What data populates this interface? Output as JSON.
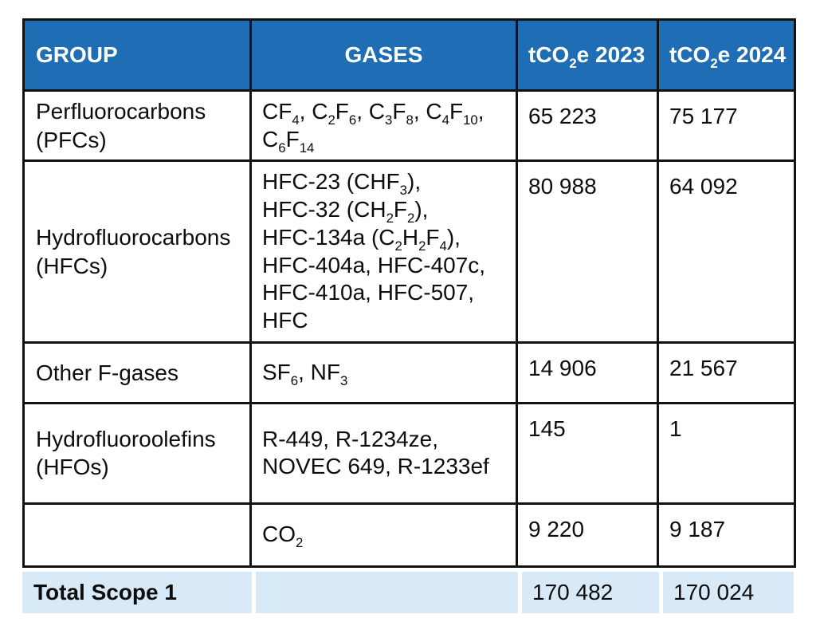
{
  "colors": {
    "header_bg": "#1f6db4",
    "header_text": "#ffffff",
    "total_bg": "#d8eaf8",
    "border": "#121212",
    "body_text": "#0d0d0d"
  },
  "header": {
    "group": "GROUP",
    "gases": "GASES",
    "y2023": "tCO_{2}e 2023",
    "y2024": "tCO_{2}e 2024"
  },
  "rows": [
    {
      "group": "Perfluorocarbons\n(PFCs)",
      "gases": "CF_{4}, C_{2}F_{6}, C_{3}F_{8}, C_{4}F_{10},\nC_{6}F_{14}",
      "y2023": "65 223",
      "y2024": "75 177"
    },
    {
      "group": "Hydrofluorocarbons\n(HFCs)",
      "gases": "HFC-23 (CHF_{3}),\nHFC-32 (CH_{2}F_{2}),\nHFC-134a (C_{2}H_{2}F_{4}),\nHFC-404a, HFC-407c,\nHFC-410a, HFC-507,\nHFC",
      "y2023": "80 988",
      "y2024": "64 092"
    },
    {
      "group": "Other F-gases",
      "gases": "SF_{6}, NF_{3}",
      "y2023": "14 906",
      "y2024": "21 567"
    },
    {
      "group": "Hydrofluoroolefins\n(HFOs)",
      "gases": "R-449, R-1234ze,\nNOVEC 649, R-1233ef",
      "y2023": "145",
      "y2024": "1"
    },
    {
      "group": "",
      "gases": "CO_{2}",
      "y2023": "9 220",
      "y2024": "9 187"
    }
  ],
  "total": {
    "label": "Total Scope 1",
    "gases": "",
    "y2023": "170 482",
    "y2024": "170 024"
  }
}
